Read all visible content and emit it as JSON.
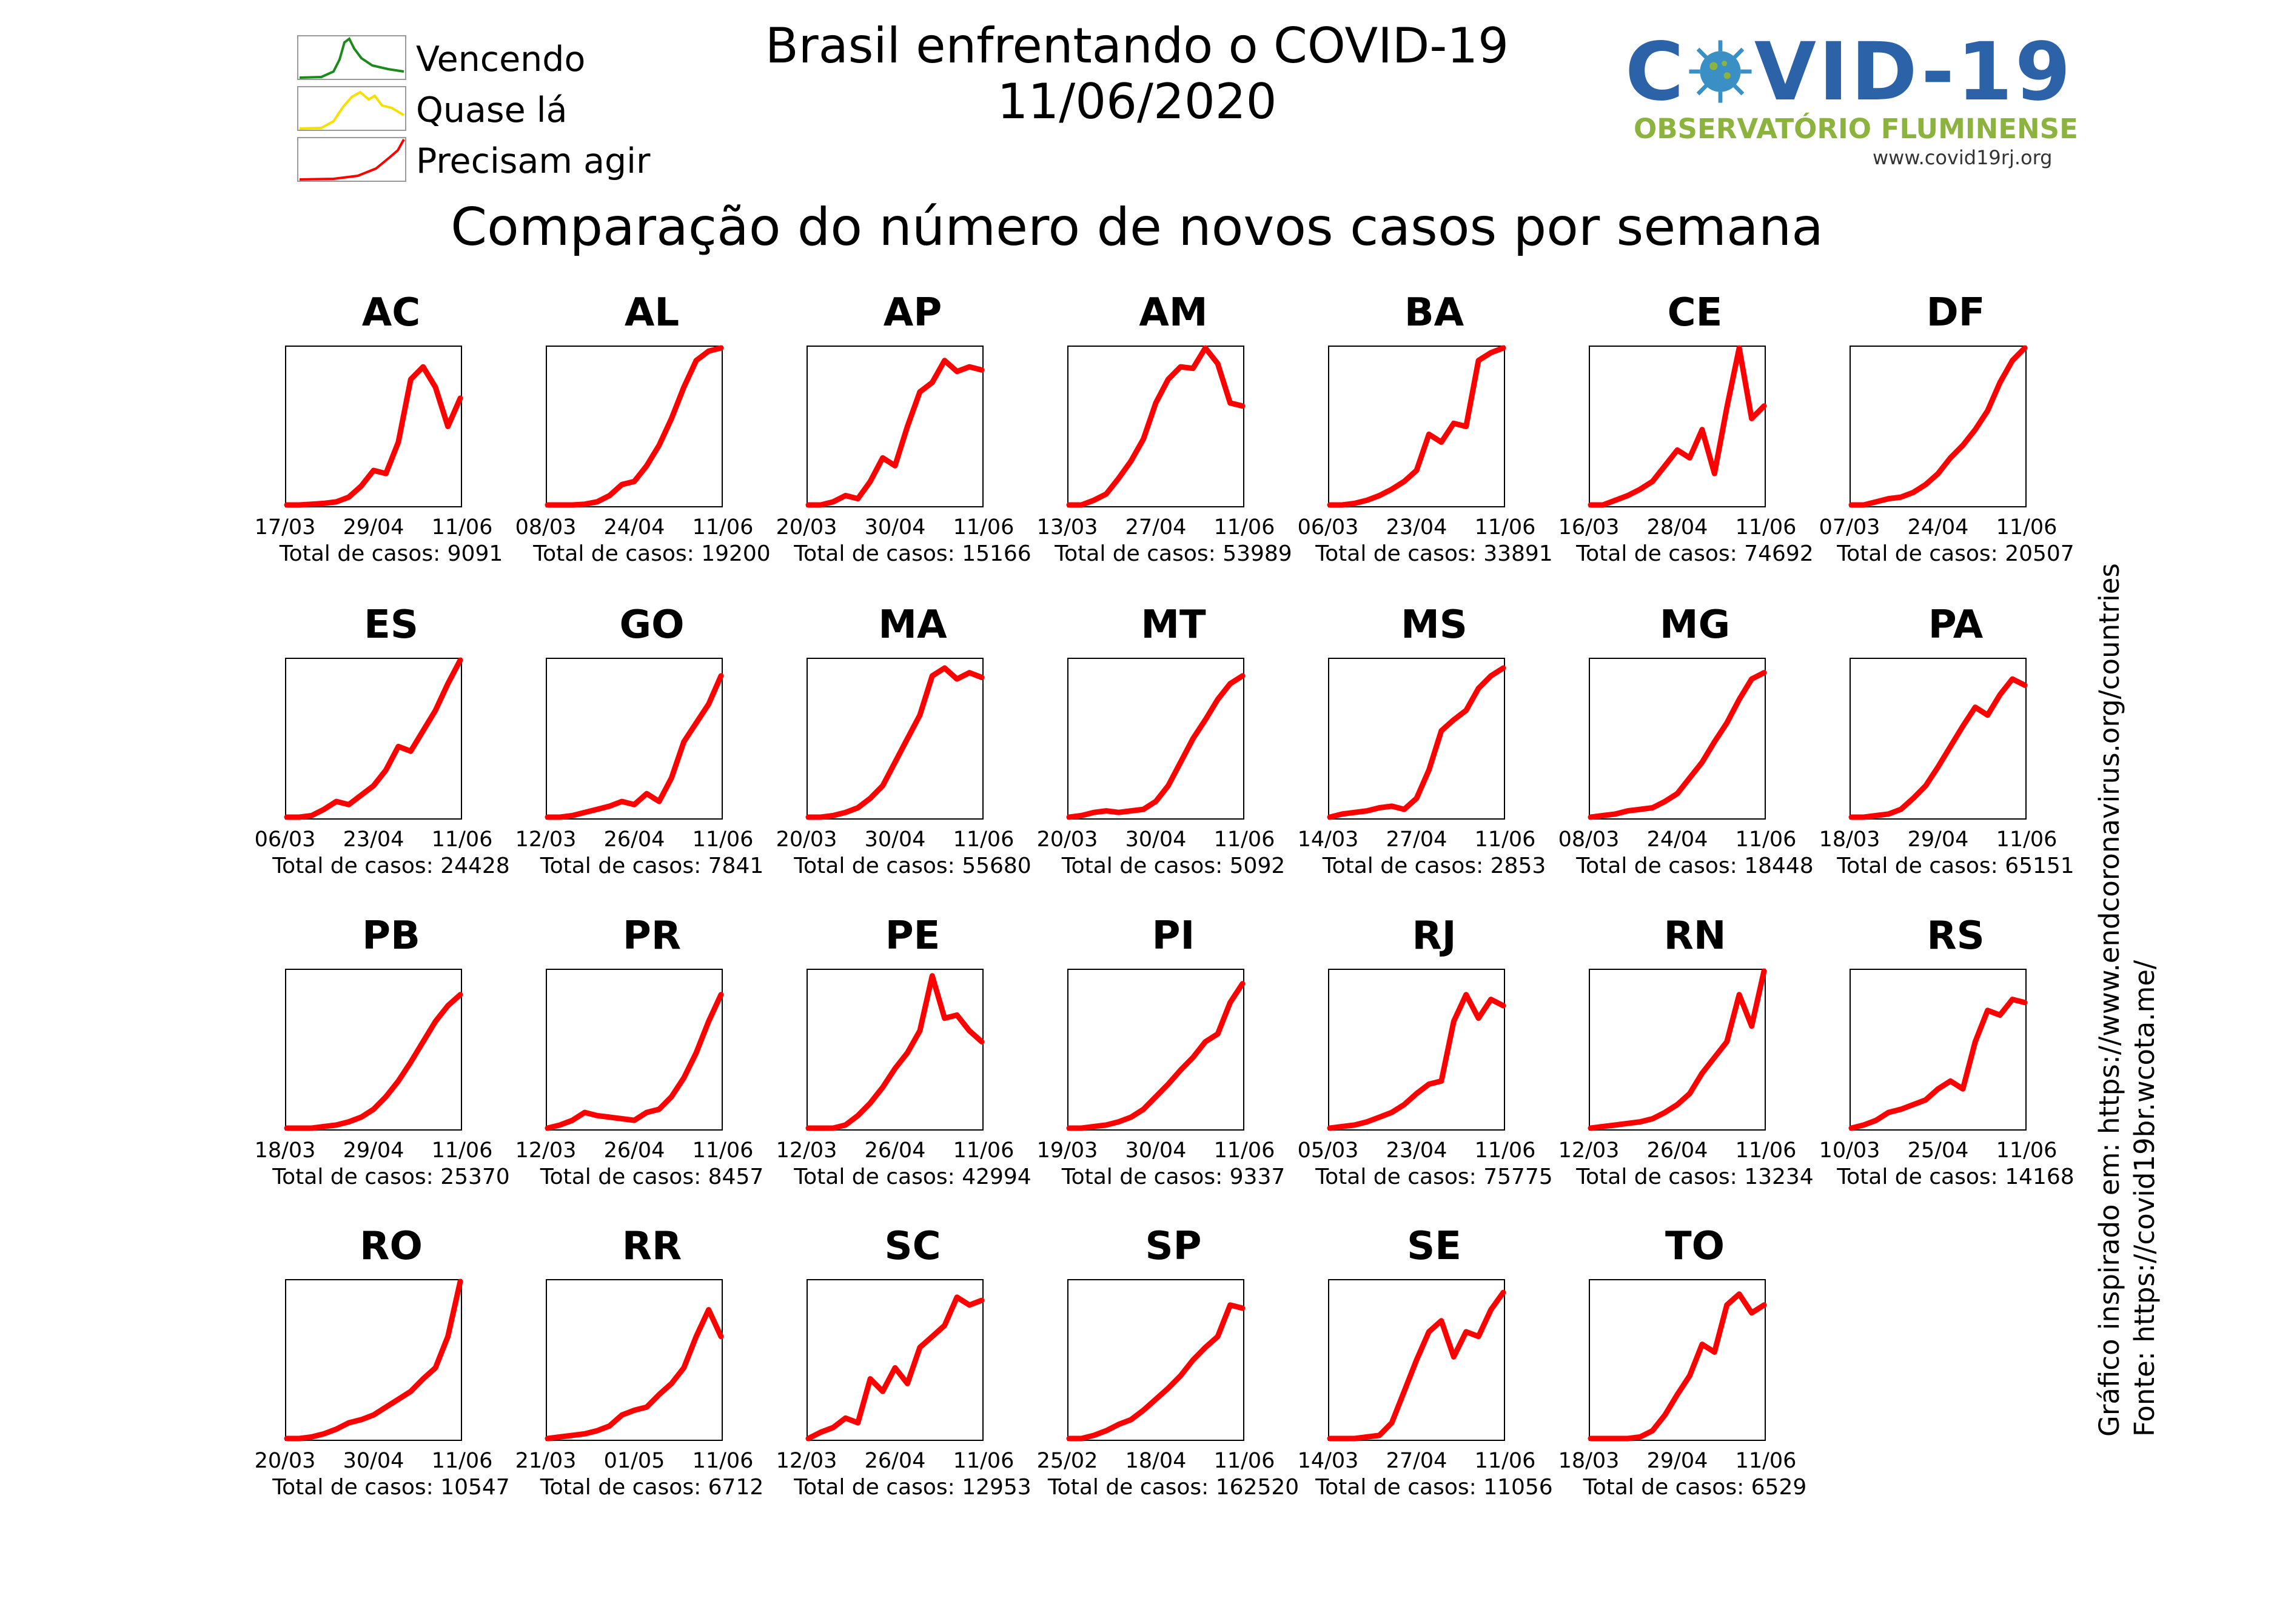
{
  "header": {
    "title": "Brasil enfrentando o COVID-19\n11/06/2020",
    "subtitle": "Comparação do número de novos casos por semana"
  },
  "legend": {
    "items": [
      {
        "label": "Vencendo",
        "color": "#1a8a1a"
      },
      {
        "label": "Quase lá",
        "color": "#f5e000"
      },
      {
        "label": "Precisam agir",
        "color": "#ff0000"
      }
    ]
  },
  "logo": {
    "word": "C VID-19",
    "subtitle": "OBSERVATÓRIO FLUMINENSE",
    "url": "www.covid19rj.org",
    "colors": {
      "word": "#2c63a8",
      "sub": "#8bb33e",
      "virus": "#3a8fc4"
    }
  },
  "side_note": {
    "line1": "Gráfico inspirado em: https://www.endcoronavirus.org/countries",
    "line2": "Fonte: https://covid19br.wcota.me/"
  },
  "chart_data": [
    {
      "type": "line",
      "title": "AC",
      "x_ticks": [
        "17/03",
        "29/04",
        "11/06"
      ],
      "total_label": "Total de casos: 9091",
      "color": "#ff0000",
      "y": [
        0,
        0,
        0.005,
        0.01,
        0.02,
        0.05,
        0.12,
        0.22,
        0.2,
        0.4,
        0.8,
        0.88,
        0.75,
        0.5,
        0.68
      ]
    },
    {
      "type": "line",
      "title": "AL",
      "x_ticks": [
        "08/03",
        "24/04",
        "11/06"
      ],
      "total_label": "Total de casos: 19200",
      "color": "#ff0000",
      "y": [
        0,
        0,
        0,
        0.005,
        0.02,
        0.06,
        0.13,
        0.15,
        0.25,
        0.38,
        0.55,
        0.75,
        0.92,
        0.98,
        1.0
      ]
    },
    {
      "type": "line",
      "title": "AP",
      "x_ticks": [
        "20/03",
        "30/04",
        "11/06"
      ],
      "total_label": "Total de casos: 15166",
      "color": "#ff0000",
      "y": [
        0,
        0,
        0.02,
        0.06,
        0.04,
        0.15,
        0.3,
        0.25,
        0.5,
        0.72,
        0.78,
        0.92,
        0.85,
        0.88,
        0.86
      ]
    },
    {
      "type": "line",
      "title": "AM",
      "x_ticks": [
        "13/03",
        "27/04",
        "11/06"
      ],
      "total_label": "Total de casos: 53989",
      "color": "#ff0000",
      "y": [
        0,
        0,
        0.03,
        0.07,
        0.17,
        0.28,
        0.42,
        0.65,
        0.8,
        0.88,
        0.87,
        1.0,
        0.9,
        0.65,
        0.63
      ]
    },
    {
      "type": "line",
      "title": "BA",
      "x_ticks": [
        "06/03",
        "23/04",
        "11/06"
      ],
      "total_label": "Total de casos: 33891",
      "color": "#ff0000",
      "y": [
        0,
        0,
        0.01,
        0.03,
        0.06,
        0.1,
        0.15,
        0.22,
        0.45,
        0.4,
        0.52,
        0.5,
        0.92,
        0.97,
        1.0
      ]
    },
    {
      "type": "line",
      "title": "CE",
      "x_ticks": [
        "16/03",
        "28/04",
        "11/06"
      ],
      "total_label": "Total de casos: 74692",
      "color": "#ff0000",
      "y": [
        0,
        0,
        0.03,
        0.06,
        0.1,
        0.15,
        0.25,
        0.35,
        0.3,
        0.48,
        0.2,
        0.62,
        1.0,
        0.55,
        0.63
      ]
    },
    {
      "type": "line",
      "title": "DF",
      "x_ticks": [
        "07/03",
        "24/04",
        "11/06"
      ],
      "total_label": "Total de casos: 20507",
      "color": "#ff0000",
      "y": [
        0,
        0,
        0.02,
        0.04,
        0.05,
        0.08,
        0.13,
        0.2,
        0.3,
        0.38,
        0.48,
        0.6,
        0.78,
        0.92,
        1.0
      ]
    },
    {
      "type": "line",
      "title": "ES",
      "x_ticks": [
        "06/03",
        "23/04",
        "11/06"
      ],
      "total_label": "Total de casos: 24428",
      "color": "#ff0000",
      "y": [
        0,
        0,
        0.01,
        0.05,
        0.1,
        0.08,
        0.14,
        0.2,
        0.3,
        0.45,
        0.42,
        0.55,
        0.68,
        0.85,
        1.0
      ]
    },
    {
      "type": "line",
      "title": "GO",
      "x_ticks": [
        "12/03",
        "26/04",
        "11/06"
      ],
      "total_label": "Total de casos: 7841",
      "color": "#ff0000",
      "y": [
        0,
        0,
        0.01,
        0.03,
        0.05,
        0.07,
        0.1,
        0.08,
        0.15,
        0.1,
        0.25,
        0.48,
        0.6,
        0.72,
        0.9
      ]
    },
    {
      "type": "line",
      "title": "MA",
      "x_ticks": [
        "20/03",
        "30/04",
        "11/06"
      ],
      "total_label": "Total de casos: 55680",
      "color": "#ff0000",
      "y": [
        0,
        0,
        0.01,
        0.03,
        0.06,
        0.12,
        0.2,
        0.35,
        0.5,
        0.65,
        0.9,
        0.95,
        0.88,
        0.92,
        0.89
      ]
    },
    {
      "type": "line",
      "title": "MT",
      "x_ticks": [
        "20/03",
        "30/04",
        "11/06"
      ],
      "total_label": "Total de casos: 5092",
      "color": "#ff0000",
      "y": [
        0,
        0.01,
        0.03,
        0.04,
        0.03,
        0.04,
        0.05,
        0.1,
        0.2,
        0.35,
        0.5,
        0.62,
        0.75,
        0.85,
        0.9
      ]
    },
    {
      "type": "line",
      "title": "MS",
      "x_ticks": [
        "14/03",
        "27/04",
        "11/06"
      ],
      "total_label": "Total de casos: 2853",
      "color": "#ff0000",
      "y": [
        0,
        0.02,
        0.03,
        0.04,
        0.06,
        0.07,
        0.05,
        0.12,
        0.3,
        0.55,
        0.62,
        0.68,
        0.82,
        0.9,
        0.95
      ]
    },
    {
      "type": "line",
      "title": "MG",
      "x_ticks": [
        "08/03",
        "24/04",
        "11/06"
      ],
      "total_label": "Total de casos: 18448",
      "color": "#ff0000",
      "y": [
        0,
        0.01,
        0.02,
        0.04,
        0.05,
        0.06,
        0.1,
        0.15,
        0.25,
        0.35,
        0.48,
        0.6,
        0.75,
        0.88,
        0.92
      ]
    },
    {
      "type": "line",
      "title": "PA",
      "x_ticks": [
        "18/03",
        "29/04",
        "11/06"
      ],
      "total_label": "Total de casos: 65151",
      "color": "#ff0000",
      "y": [
        0,
        0,
        0.01,
        0.02,
        0.05,
        0.12,
        0.2,
        0.32,
        0.45,
        0.58,
        0.7,
        0.65,
        0.78,
        0.88,
        0.84
      ]
    },
    {
      "type": "line",
      "title": "PB",
      "x_ticks": [
        "18/03",
        "29/04",
        "11/06"
      ],
      "total_label": "Total de casos: 25370",
      "color": "#ff0000",
      "y": [
        0,
        0,
        0,
        0.01,
        0.02,
        0.04,
        0.07,
        0.12,
        0.2,
        0.3,
        0.42,
        0.55,
        0.68,
        0.78,
        0.85
      ]
    },
    {
      "type": "line",
      "title": "PR",
      "x_ticks": [
        "12/03",
        "26/04",
        "11/06"
      ],
      "total_label": "Total de casos: 8457",
      "color": "#ff0000",
      "y": [
        0,
        0.02,
        0.05,
        0.1,
        0.08,
        0.07,
        0.06,
        0.05,
        0.1,
        0.12,
        0.2,
        0.32,
        0.48,
        0.68,
        0.85
      ]
    },
    {
      "type": "line",
      "title": "PE",
      "x_ticks": [
        "12/03",
        "26/04",
        "11/06"
      ],
      "total_label": "Total de casos: 42994",
      "color": "#ff0000",
      "y": [
        0,
        0,
        0,
        0.02,
        0.08,
        0.16,
        0.26,
        0.38,
        0.48,
        0.62,
        0.97,
        0.7,
        0.72,
        0.62,
        0.55
      ]
    },
    {
      "type": "line",
      "title": "PI",
      "x_ticks": [
        "19/03",
        "30/04",
        "11/06"
      ],
      "total_label": "Total de casos: 9337",
      "color": "#ff0000",
      "y": [
        0,
        0,
        0.01,
        0.02,
        0.04,
        0.07,
        0.12,
        0.2,
        0.28,
        0.37,
        0.45,
        0.55,
        0.6,
        0.8,
        0.92
      ]
    },
    {
      "type": "line",
      "title": "RJ",
      "x_ticks": [
        "05/03",
        "23/04",
        "11/06"
      ],
      "total_label": "Total de casos: 75775",
      "color": "#ff0000",
      "y": [
        0,
        0.01,
        0.02,
        0.04,
        0.07,
        0.1,
        0.15,
        0.22,
        0.28,
        0.3,
        0.68,
        0.85,
        0.7,
        0.82,
        0.78
      ]
    },
    {
      "type": "line",
      "title": "RN",
      "x_ticks": [
        "12/03",
        "26/04",
        "11/06"
      ],
      "total_label": "Total de casos: 13234",
      "color": "#ff0000",
      "y": [
        0,
        0.01,
        0.02,
        0.03,
        0.04,
        0.06,
        0.1,
        0.15,
        0.22,
        0.35,
        0.45,
        0.55,
        0.85,
        0.65,
        1.0
      ]
    },
    {
      "type": "line",
      "title": "RS",
      "x_ticks": [
        "10/03",
        "25/04",
        "11/06"
      ],
      "total_label": "Total de casos: 14168",
      "color": "#ff0000",
      "y": [
        0,
        0.02,
        0.05,
        0.1,
        0.12,
        0.15,
        0.18,
        0.25,
        0.3,
        0.25,
        0.55,
        0.75,
        0.72,
        0.82,
        0.8
      ]
    },
    {
      "type": "line",
      "title": "RO",
      "x_ticks": [
        "20/03",
        "30/04",
        "11/06"
      ],
      "total_label": "Total de casos: 10547",
      "color": "#ff0000",
      "y": [
        0,
        0,
        0.01,
        0.03,
        0.06,
        0.1,
        0.12,
        0.15,
        0.2,
        0.25,
        0.3,
        0.38,
        0.45,
        0.65,
        1.0
      ]
    },
    {
      "type": "line",
      "title": "RR",
      "x_ticks": [
        "21/03",
        "01/05",
        "11/06"
      ],
      "total_label": "Total de casos: 6712",
      "color": "#ff0000",
      "y": [
        0,
        0.01,
        0.02,
        0.03,
        0.05,
        0.08,
        0.15,
        0.18,
        0.2,
        0.28,
        0.35,
        0.45,
        0.65,
        0.82,
        0.65
      ]
    },
    {
      "type": "line",
      "title": "SC",
      "x_ticks": [
        "12/03",
        "26/04",
        "11/06"
      ],
      "total_label": "Total de casos: 12953",
      "color": "#ff0000",
      "y": [
        0,
        0.04,
        0.07,
        0.13,
        0.1,
        0.38,
        0.3,
        0.45,
        0.35,
        0.58,
        0.65,
        0.72,
        0.9,
        0.85,
        0.88
      ]
    },
    {
      "type": "line",
      "title": "SP",
      "x_ticks": [
        "25/02",
        "18/04",
        "11/06"
      ],
      "total_label": "Total de casos: 162520",
      "color": "#ff0000",
      "y": [
        0,
        0,
        0.02,
        0.05,
        0.09,
        0.12,
        0.18,
        0.25,
        0.32,
        0.4,
        0.5,
        0.58,
        0.65,
        0.85,
        0.83
      ]
    },
    {
      "type": "line",
      "title": "SE",
      "x_ticks": [
        "14/03",
        "27/04",
        "11/06"
      ],
      "total_label": "Total de casos: 11056",
      "color": "#ff0000",
      "y": [
        0,
        0,
        0,
        0.01,
        0.02,
        0.1,
        0.3,
        0.5,
        0.68,
        0.75,
        0.52,
        0.68,
        0.65,
        0.82,
        0.93
      ]
    },
    {
      "type": "line",
      "title": "TO",
      "x_ticks": [
        "18/03",
        "29/04",
        "11/06"
      ],
      "total_label": "Total de casos: 6529",
      "color": "#ff0000",
      "y": [
        0,
        0,
        0,
        0,
        0.01,
        0.05,
        0.15,
        0.28,
        0.4,
        0.6,
        0.55,
        0.85,
        0.92,
        0.8,
        0.85
      ]
    }
  ]
}
